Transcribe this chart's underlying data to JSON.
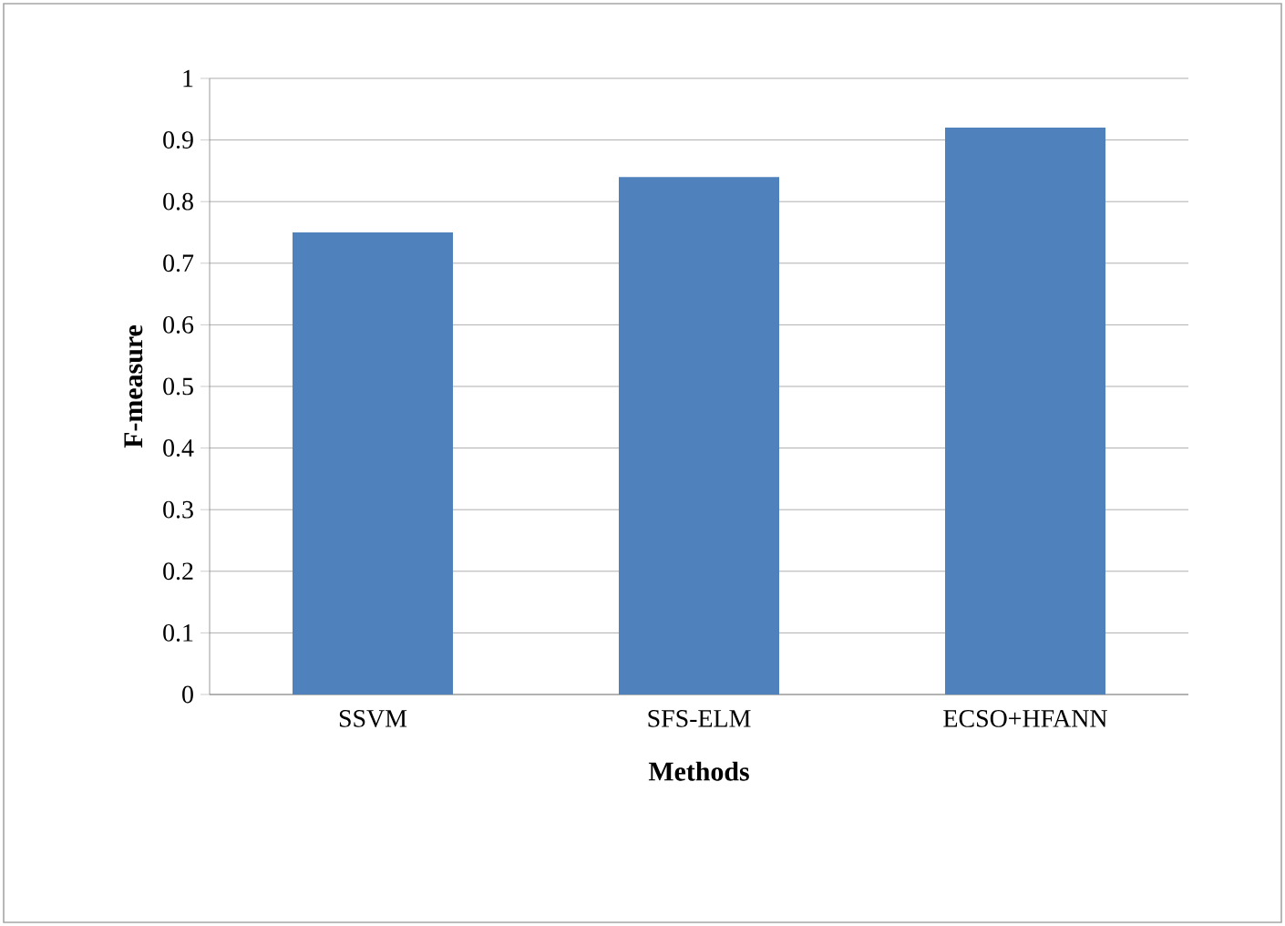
{
  "chart_data": {
    "type": "bar",
    "xlabel": "Methods",
    "ylabel": "F-measure",
    "categories": [
      "SSVM",
      "SFS-ELM",
      "ECSO+HFANN"
    ],
    "values": [
      0.75,
      0.84,
      0.92
    ],
    "color": "#4f81bd",
    "ylim": [
      0,
      1
    ],
    "yticks": [
      0,
      0.1,
      0.2,
      0.3,
      0.4,
      0.5,
      0.6,
      0.7,
      0.8,
      0.9,
      1
    ],
    "grid": "y"
  }
}
